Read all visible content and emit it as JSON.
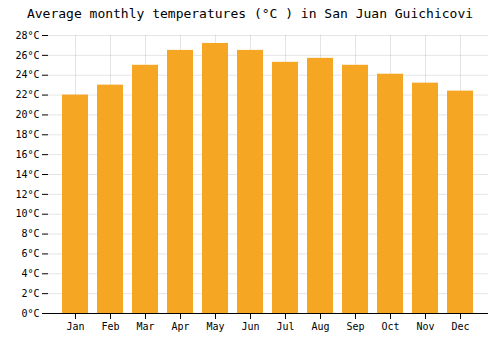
{
  "chart_data": {
    "type": "bar",
    "title": "Average monthly temperatures (°C ) in San Juan Guichicovi",
    "categories": [
      "Jan",
      "Feb",
      "Mar",
      "Apr",
      "May",
      "Jun",
      "Jul",
      "Aug",
      "Sep",
      "Oct",
      "Nov",
      "Dec"
    ],
    "values": [
      22.0,
      23.0,
      25.0,
      26.5,
      27.2,
      26.5,
      25.3,
      25.7,
      25.0,
      24.1,
      23.2,
      22.4
    ],
    "color": "#F5A623",
    "ylim": [
      0,
      28
    ],
    "yticks": [
      {
        "value": 0,
        "label": "0°C"
      },
      {
        "value": 2,
        "label": "2°C"
      },
      {
        "value": 4,
        "label": "4°C"
      },
      {
        "value": 6,
        "label": "6°C"
      },
      {
        "value": 8,
        "label": "8°C"
      },
      {
        "value": 10,
        "label": "10°C"
      },
      {
        "value": 12,
        "label": "12°C"
      },
      {
        "value": 14,
        "label": "14°C"
      },
      {
        "value": 16,
        "label": "16°C"
      },
      {
        "value": 18,
        "label": "18°C"
      },
      {
        "value": 20,
        "label": "20°C"
      },
      {
        "value": 22,
        "label": "22°C"
      },
      {
        "value": 24,
        "label": "24°C"
      },
      {
        "value": 26,
        "label": "26°C"
      },
      {
        "value": 28,
        "label": "28°C"
      }
    ],
    "grid": true
  }
}
